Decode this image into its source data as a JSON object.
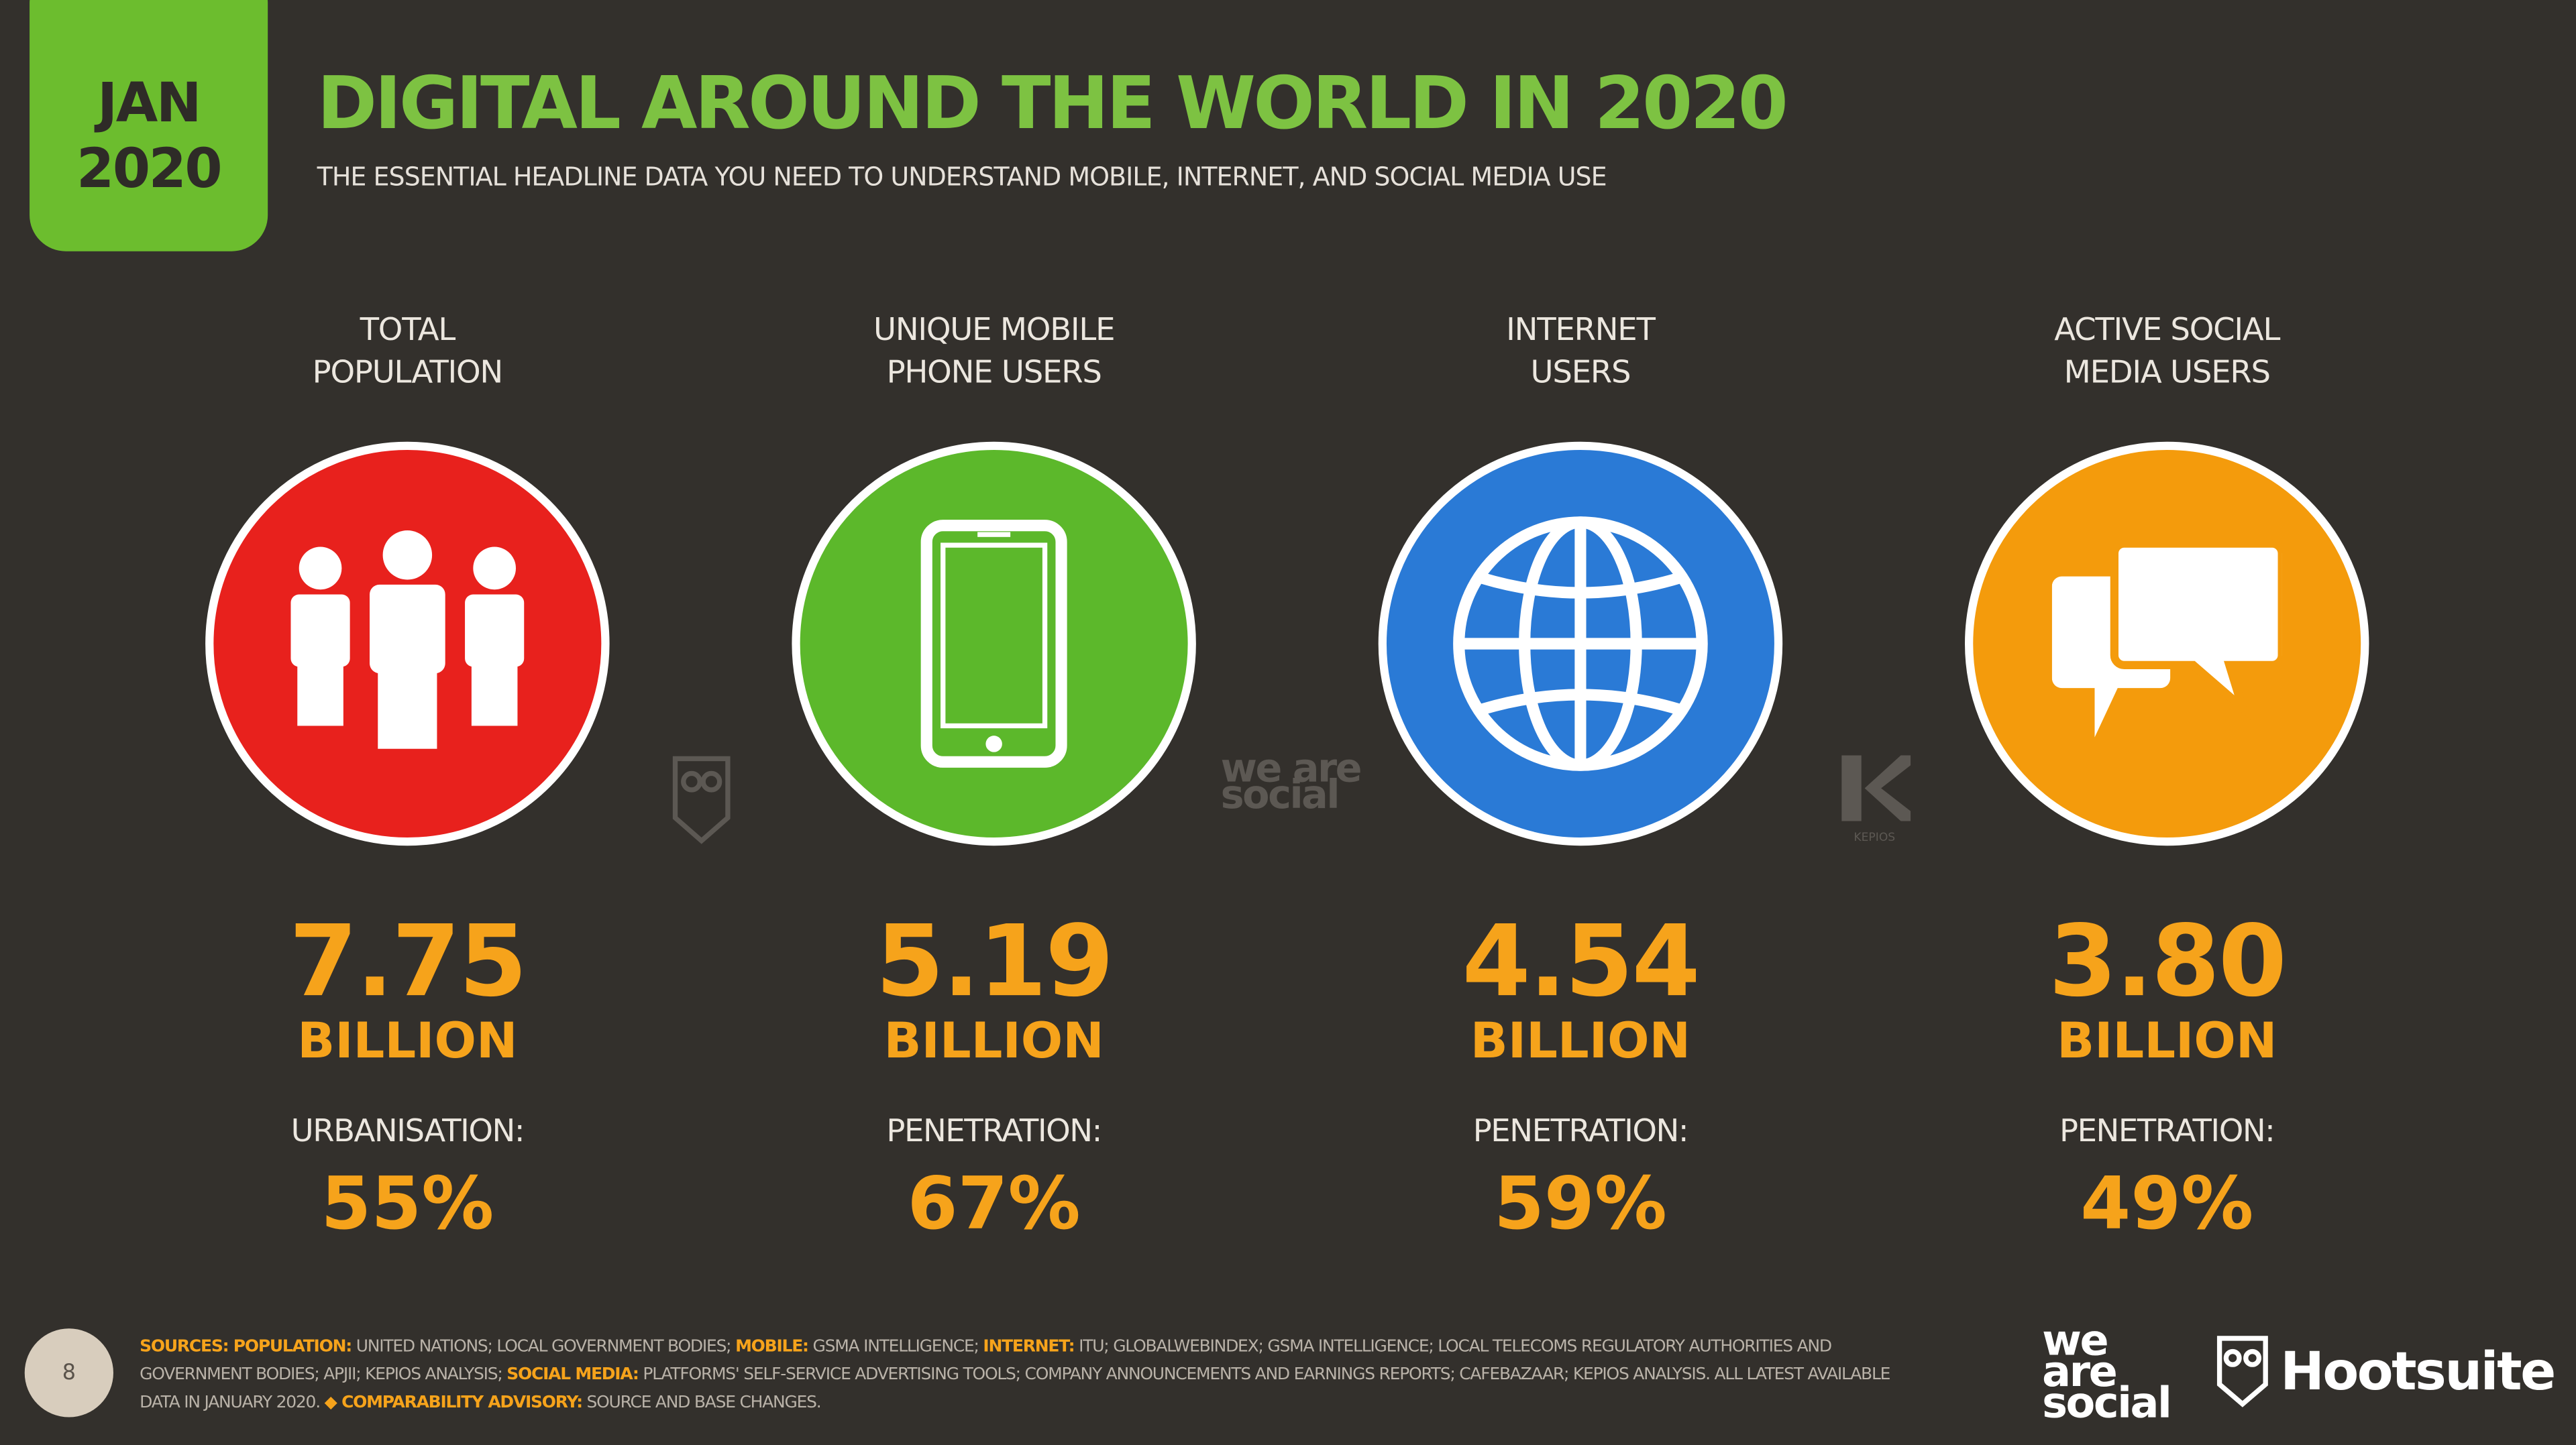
{
  "header": {
    "date_month": "JAN",
    "date_year": "2020",
    "title": "DIGITAL AROUND THE WORLD IN 2020",
    "subtitle": "THE ESSENTIAL HEADLINE DATA YOU NEED TO UNDERSTAND MOBILE, INTERNET, AND SOCIAL MEDIA USE"
  },
  "colors": {
    "background": "#33302c",
    "brand_green": "#7dc242",
    "value_orange": "#f6a31b",
    "population_red": "#e8211d",
    "mobile_green": "#5cb82b",
    "internet_blue": "#2a7ad6",
    "social_orange": "#f49b0c"
  },
  "stats": [
    {
      "label_line1": "TOTAL",
      "label_line2": "POPULATION",
      "icon": "people-icon",
      "value": "7.75",
      "unit": "BILLION",
      "sub_label": "URBANISATION:",
      "percent": "55%"
    },
    {
      "label_line1": "UNIQUE MOBILE",
      "label_line2": "PHONE USERS",
      "icon": "mobile-phone-icon",
      "value": "5.19",
      "unit": "BILLION",
      "sub_label": "PENETRATION:",
      "percent": "67%"
    },
    {
      "label_line1": "INTERNET",
      "label_line2": "USERS",
      "icon": "globe-icon",
      "value": "4.54",
      "unit": "BILLION",
      "sub_label": "PENETRATION:",
      "percent": "59%"
    },
    {
      "label_line1": "ACTIVE SOCIAL",
      "label_line2": "MEDIA USERS",
      "icon": "speech-bubbles-icon",
      "value": "3.80",
      "unit": "BILLION",
      "sub_label": "PENETRATION:",
      "percent": "49%"
    }
  ],
  "watermarks": {
    "we_are_social": "we are social",
    "kepios": "KEPIOS"
  },
  "footer": {
    "page_number": "8",
    "sources": [
      {
        "t": "SOURCES: POPULATION:",
        "hl": true
      },
      {
        "t": " UNITED NATIONS; LOCAL GOVERNMENT BODIES; ",
        "hl": false
      },
      {
        "t": "MOBILE:",
        "hl": true
      },
      {
        "t": " GSMA INTELLIGENCE; ",
        "hl": false
      },
      {
        "t": "INTERNET:",
        "hl": true
      },
      {
        "t": " ITU; GLOBALWEBINDEX; GSMA INTELLIGENCE; LOCAL TELECOMS REGULATORY AUTHORITIES AND GOVERNMENT BODIES; APJII; KEPIOS ANALYSIS; ",
        "hl": false
      },
      {
        "t": "SOCIAL MEDIA:",
        "hl": true
      },
      {
        "t": " PLATFORMS' SELF-SERVICE ADVERTISING TOOLS; COMPANY ANNOUNCEMENTS AND EARNINGS REPORTS; CAFEBAZAAR; KEPIOS ANALYSIS. ALL LATEST AVAILABLE DATA IN JANUARY 2020. ",
        "hl": false
      },
      {
        "t": "◆ COMPARABILITY ADVISORY:",
        "hl": true
      },
      {
        "t": " SOURCE AND BASE CHANGES.",
        "hl": false
      }
    ],
    "logo_we_are_social": "we are social",
    "logo_hootsuite": "Hootsuite"
  }
}
